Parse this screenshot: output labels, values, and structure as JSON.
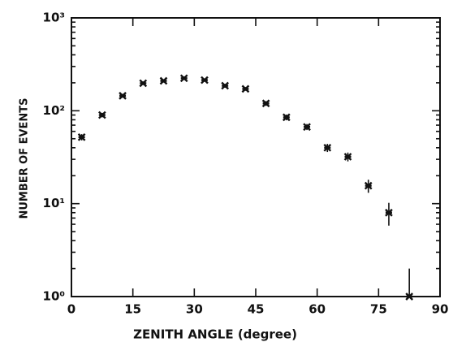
{
  "chart_data": {
    "type": "scatter",
    "xlabel": "ZENITH ANGLE (degree)",
    "ylabel": "NUMBER OF EVENTS",
    "x": [
      2.5,
      7.5,
      12.5,
      17.5,
      22.5,
      27.5,
      32.5,
      37.5,
      42.5,
      47.5,
      52.5,
      57.5,
      62.5,
      67.5,
      72.5,
      77.5,
      82.5
    ],
    "values": [
      52,
      90,
      145,
      198,
      210,
      224,
      214,
      186,
      172,
      120,
      85,
      67,
      40,
      32,
      15.6,
      8,
      1
    ],
    "errors": [
      4,
      5,
      7,
      9,
      9,
      10,
      9,
      9,
      8,
      7,
      6,
      5,
      4,
      3.5,
      2.5,
      2.2,
      1
    ],
    "color": "#111111",
    "xlim": [
      0,
      90
    ],
    "xticks": [
      0,
      15,
      30,
      45,
      60,
      75,
      90
    ],
    "ylim": [
      1,
      1000
    ],
    "log_y": true,
    "yticks": [
      {
        "value": 1,
        "label": "10⁰"
      },
      {
        "value": 10,
        "label": "10¹"
      },
      {
        "value": 100,
        "label": "10²"
      },
      {
        "value": 1000,
        "label": "10³"
      }
    ]
  }
}
